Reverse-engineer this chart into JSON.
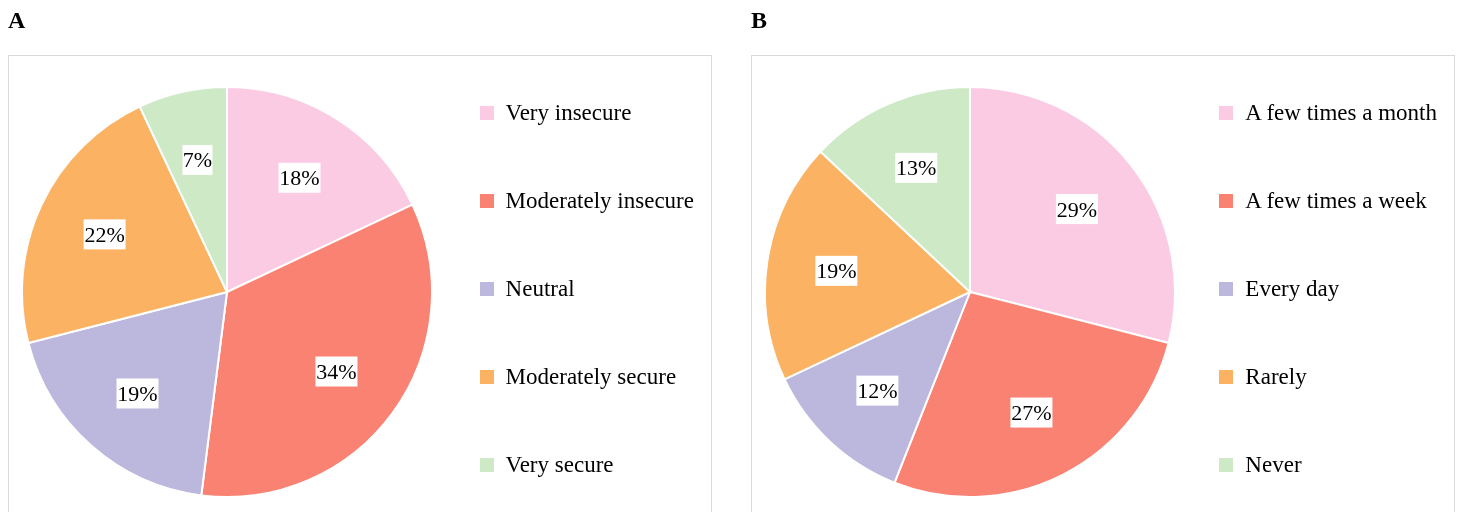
{
  "chart_data": [
    {
      "type": "pie",
      "title": "A",
      "categories": [
        "Very insecure",
        "Moderately insecure",
        "Neutral",
        "Moderately secure",
        "Very secure"
      ],
      "values": [
        18,
        34,
        19,
        22,
        7
      ],
      "value_labels": [
        "18%",
        "34%",
        "19%",
        "22%",
        "7%"
      ],
      "colors": [
        "#fbcbe3",
        "#f98272",
        "#bcb7dc",
        "#fbb262",
        "#cde9c5"
      ],
      "legend": "right"
    },
    {
      "type": "pie",
      "title": "B",
      "categories": [
        "A few times a month",
        "A few times a week",
        "Every day",
        "Rarely",
        "Never"
      ],
      "values": [
        29,
        27,
        12,
        19,
        13
      ],
      "value_labels": [
        "29%",
        "27%",
        "12%",
        "19%",
        "13%"
      ],
      "colors": [
        "#fbcbe3",
        "#f98272",
        "#bcb7dc",
        "#fbb262",
        "#cde9c5"
      ],
      "legend": "right"
    }
  ]
}
